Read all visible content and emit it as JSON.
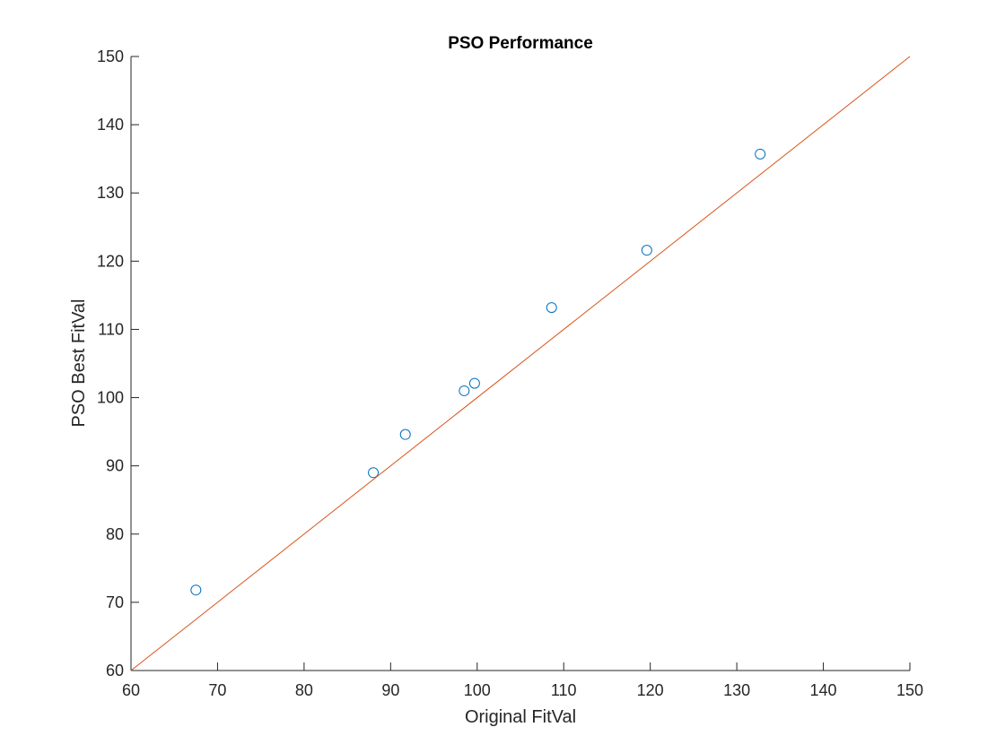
{
  "chart_data": {
    "type": "scatter",
    "title": "PSO Performance",
    "xlabel": "Original FitVal",
    "ylabel": "PSO Best FitVal",
    "xlim": [
      60,
      150
    ],
    "ylim": [
      60,
      150
    ],
    "xticks": [
      60,
      70,
      80,
      90,
      100,
      110,
      120,
      130,
      140,
      150
    ],
    "yticks": [
      60,
      70,
      80,
      90,
      100,
      110,
      120,
      130,
      140,
      150
    ],
    "grid": false,
    "legend": "none",
    "series": [
      {
        "type": "scatter",
        "marker": "circle",
        "color": "#0072BD",
        "points": [
          {
            "x": 67.5,
            "y": 71.8
          },
          {
            "x": 88.0,
            "y": 89.0
          },
          {
            "x": 91.7,
            "y": 94.6
          },
          {
            "x": 98.5,
            "y": 101.0
          },
          {
            "x": 99.7,
            "y": 102.1
          },
          {
            "x": 108.6,
            "y": 113.2
          },
          {
            "x": 119.6,
            "y": 121.6
          },
          {
            "x": 132.7,
            "y": 135.7
          }
        ]
      },
      {
        "type": "line",
        "color": "#D95319",
        "points": [
          {
            "x": 60,
            "y": 60
          },
          {
            "x": 150,
            "y": 150
          }
        ]
      }
    ]
  }
}
